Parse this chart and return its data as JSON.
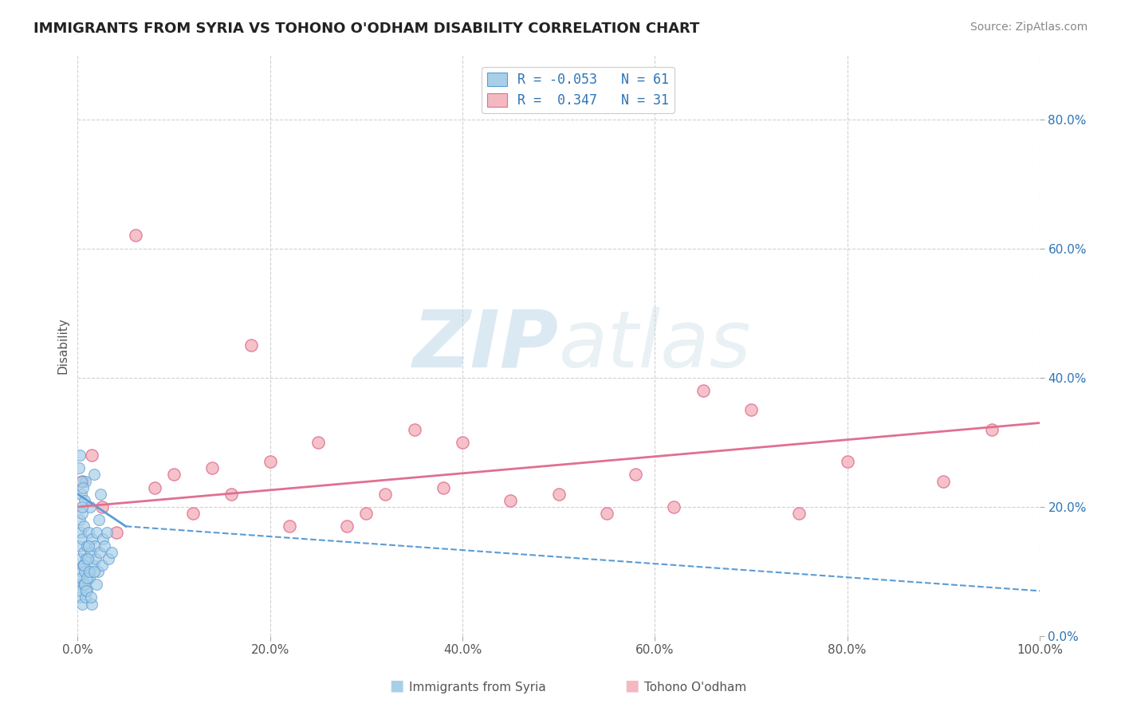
{
  "title": "IMMIGRANTS FROM SYRIA VS TOHONO O'ODHAM DISABILITY CORRELATION CHART",
  "source": "Source: ZipAtlas.com",
  "ylabel": "Disability",
  "xlim": [
    0,
    100
  ],
  "ylim": [
    0,
    90
  ],
  "legend_text1": "R = -0.053   N = 61",
  "legend_text2": "R =  0.347   N = 31",
  "color_blue": "#a8cfe8",
  "color_blue_edge": "#5b9bd5",
  "color_blue_line": "#5b9bd5",
  "color_pink": "#f4b8c1",
  "color_pink_edge": "#e07090",
  "color_pink_line": "#e07090",
  "color_legend_text": "#2e75b6",
  "color_ytick": "#2e75b6",
  "color_xtick": "#555555",
  "watermark_zip": "ZIP",
  "watermark_atlas": "atlas",
  "background_color": "#ffffff",
  "grid_color": "#cccccc",
  "blue_scatter_x": [
    0.15,
    0.2,
    0.25,
    0.3,
    0.35,
    0.4,
    0.45,
    0.5,
    0.55,
    0.6,
    0.65,
    0.7,
    0.8,
    0.9,
    1.0,
    1.1,
    1.2,
    1.3,
    1.4,
    1.5,
    1.6,
    1.7,
    1.8,
    1.9,
    2.0,
    2.1,
    2.2,
    2.3,
    2.4,
    2.5,
    2.6,
    2.8,
    3.0,
    3.2,
    3.5,
    0.15,
    0.2,
    0.3,
    0.4,
    0.5,
    0.6,
    0.7,
    0.8,
    1.0,
    1.2,
    1.5,
    2.0,
    0.15,
    0.25,
    0.35,
    0.45,
    0.55,
    0.65,
    0.75,
    0.85,
    0.95,
    1.05,
    1.15,
    1.25,
    1.35,
    1.7
  ],
  "blue_scatter_y": [
    14,
    18,
    12,
    16,
    10,
    22,
    15,
    19,
    11,
    13,
    17,
    21,
    24,
    12,
    14,
    16,
    10,
    20,
    13,
    15,
    11,
    25,
    14,
    12,
    16,
    10,
    18,
    13,
    22,
    11,
    15,
    14,
    16,
    12,
    13,
    8,
    6,
    7,
    9,
    5,
    8,
    10,
    6,
    7,
    9,
    5,
    8,
    26,
    28,
    24,
    20,
    23,
    11,
    8,
    7,
    9,
    12,
    14,
    10,
    6,
    10
  ],
  "pink_scatter_x": [
    0.5,
    1.5,
    2.5,
    4.0,
    6.0,
    8.0,
    10.0,
    12.0,
    14.0,
    16.0,
    18.0,
    20.0,
    22.0,
    25.0,
    28.0,
    30.0,
    32.0,
    35.0,
    38.0,
    40.0,
    45.0,
    50.0,
    55.0,
    58.0,
    62.0,
    65.0,
    70.0,
    75.0,
    80.0,
    90.0,
    95.0
  ],
  "pink_scatter_y": [
    24,
    28,
    20,
    16,
    62,
    23,
    25,
    19,
    26,
    22,
    45,
    27,
    17,
    30,
    17,
    19,
    22,
    32,
    23,
    30,
    21,
    22,
    19,
    25,
    20,
    38,
    35,
    19,
    27,
    24,
    32
  ],
  "blue_trend_x1": 0,
  "blue_trend_y1": 22,
  "blue_trend_x2": 5,
  "blue_trend_y2": 17,
  "blue_trend_dash_x1": 5,
  "blue_trend_dash_y1": 17,
  "blue_trend_dash_x2": 100,
  "blue_trend_dash_y2": 7,
  "pink_trend_x1": 0,
  "pink_trend_y1": 20,
  "pink_trend_x2": 100,
  "pink_trend_y2": 33,
  "bottom_label1": "Immigrants from Syria",
  "bottom_label2": "Tohono O'odham"
}
